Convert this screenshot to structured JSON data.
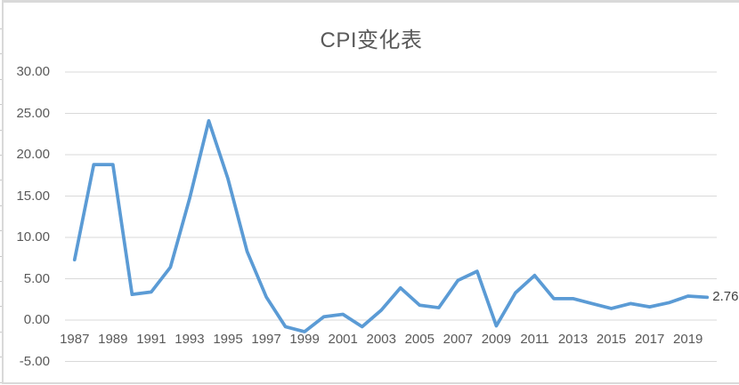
{
  "chart_data": {
    "type": "line",
    "title": "CPI变化表",
    "x": [
      1987,
      1988,
      1989,
      1990,
      1991,
      1992,
      1993,
      1994,
      1995,
      1996,
      1997,
      1998,
      1999,
      2000,
      2001,
      2002,
      2003,
      2004,
      2005,
      2006,
      2007,
      2008,
      2009,
      2010,
      2011,
      2012,
      2013,
      2014,
      2015,
      2016,
      2017,
      2018,
      2019,
      2020
    ],
    "values": [
      7.3,
      18.8,
      18.8,
      3.1,
      3.4,
      6.4,
      14.7,
      24.1,
      17.1,
      8.3,
      2.8,
      -0.8,
      -1.4,
      0.4,
      0.7,
      -0.8,
      1.2,
      3.9,
      1.8,
      1.5,
      4.8,
      5.9,
      -0.7,
      3.3,
      5.4,
      2.6,
      2.6,
      2.0,
      1.4,
      2.0,
      1.6,
      2.1,
      2.9,
      2.76
    ],
    "xlabel": "",
    "ylabel": "",
    "ylim": [
      -5,
      30
    ],
    "ytick_values": [
      30,
      25,
      20,
      15,
      10,
      5,
      0,
      -5
    ],
    "ytick_labels": [
      "30.00",
      "25.00",
      "20.00",
      "15.00",
      "10.00",
      "5.00",
      "0.00",
      "-5.00"
    ],
    "xtick_labels": [
      "1987",
      "1989",
      "1991",
      "1993",
      "1995",
      "1997",
      "1999",
      "2001",
      "2003",
      "2005",
      "2007",
      "2009",
      "2011",
      "2013",
      "2015",
      "2017",
      "2019"
    ],
    "last_point_label": "2.76",
    "legend_position": "none",
    "grid": "horizontal",
    "line_color": "#5B9BD5",
    "gridline_color": "#D9D9D9",
    "axis_label_color": "#595959",
    "title_color": "#595959",
    "data_label_color": "#404040",
    "chart_border_color": "#D9D9D9",
    "background_color": "#FFFFFF"
  }
}
